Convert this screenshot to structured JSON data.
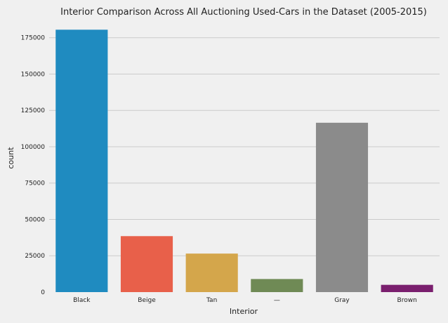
{
  "chart_data": {
    "type": "bar",
    "title": "Interior Comparison Across All Auctioning Used-Cars in the Dataset (2005-2015)",
    "xlabel": "Interior",
    "ylabel": "count",
    "categories": [
      "Black",
      "Beige",
      "Tan",
      "—",
      "Gray",
      "Brown"
    ],
    "values": [
      180500,
      38500,
      26500,
      9000,
      116500,
      5000
    ],
    "colors": [
      "#1f8bc0",
      "#e8604a",
      "#d4a64b",
      "#6f8a55",
      "#8b8b8b",
      "#7a1f6e"
    ],
    "ylim": [
      0,
      185000
    ],
    "yticks": [
      0,
      25000,
      50000,
      75000,
      100000,
      125000,
      150000,
      175000
    ],
    "grid": "horizontal"
  }
}
